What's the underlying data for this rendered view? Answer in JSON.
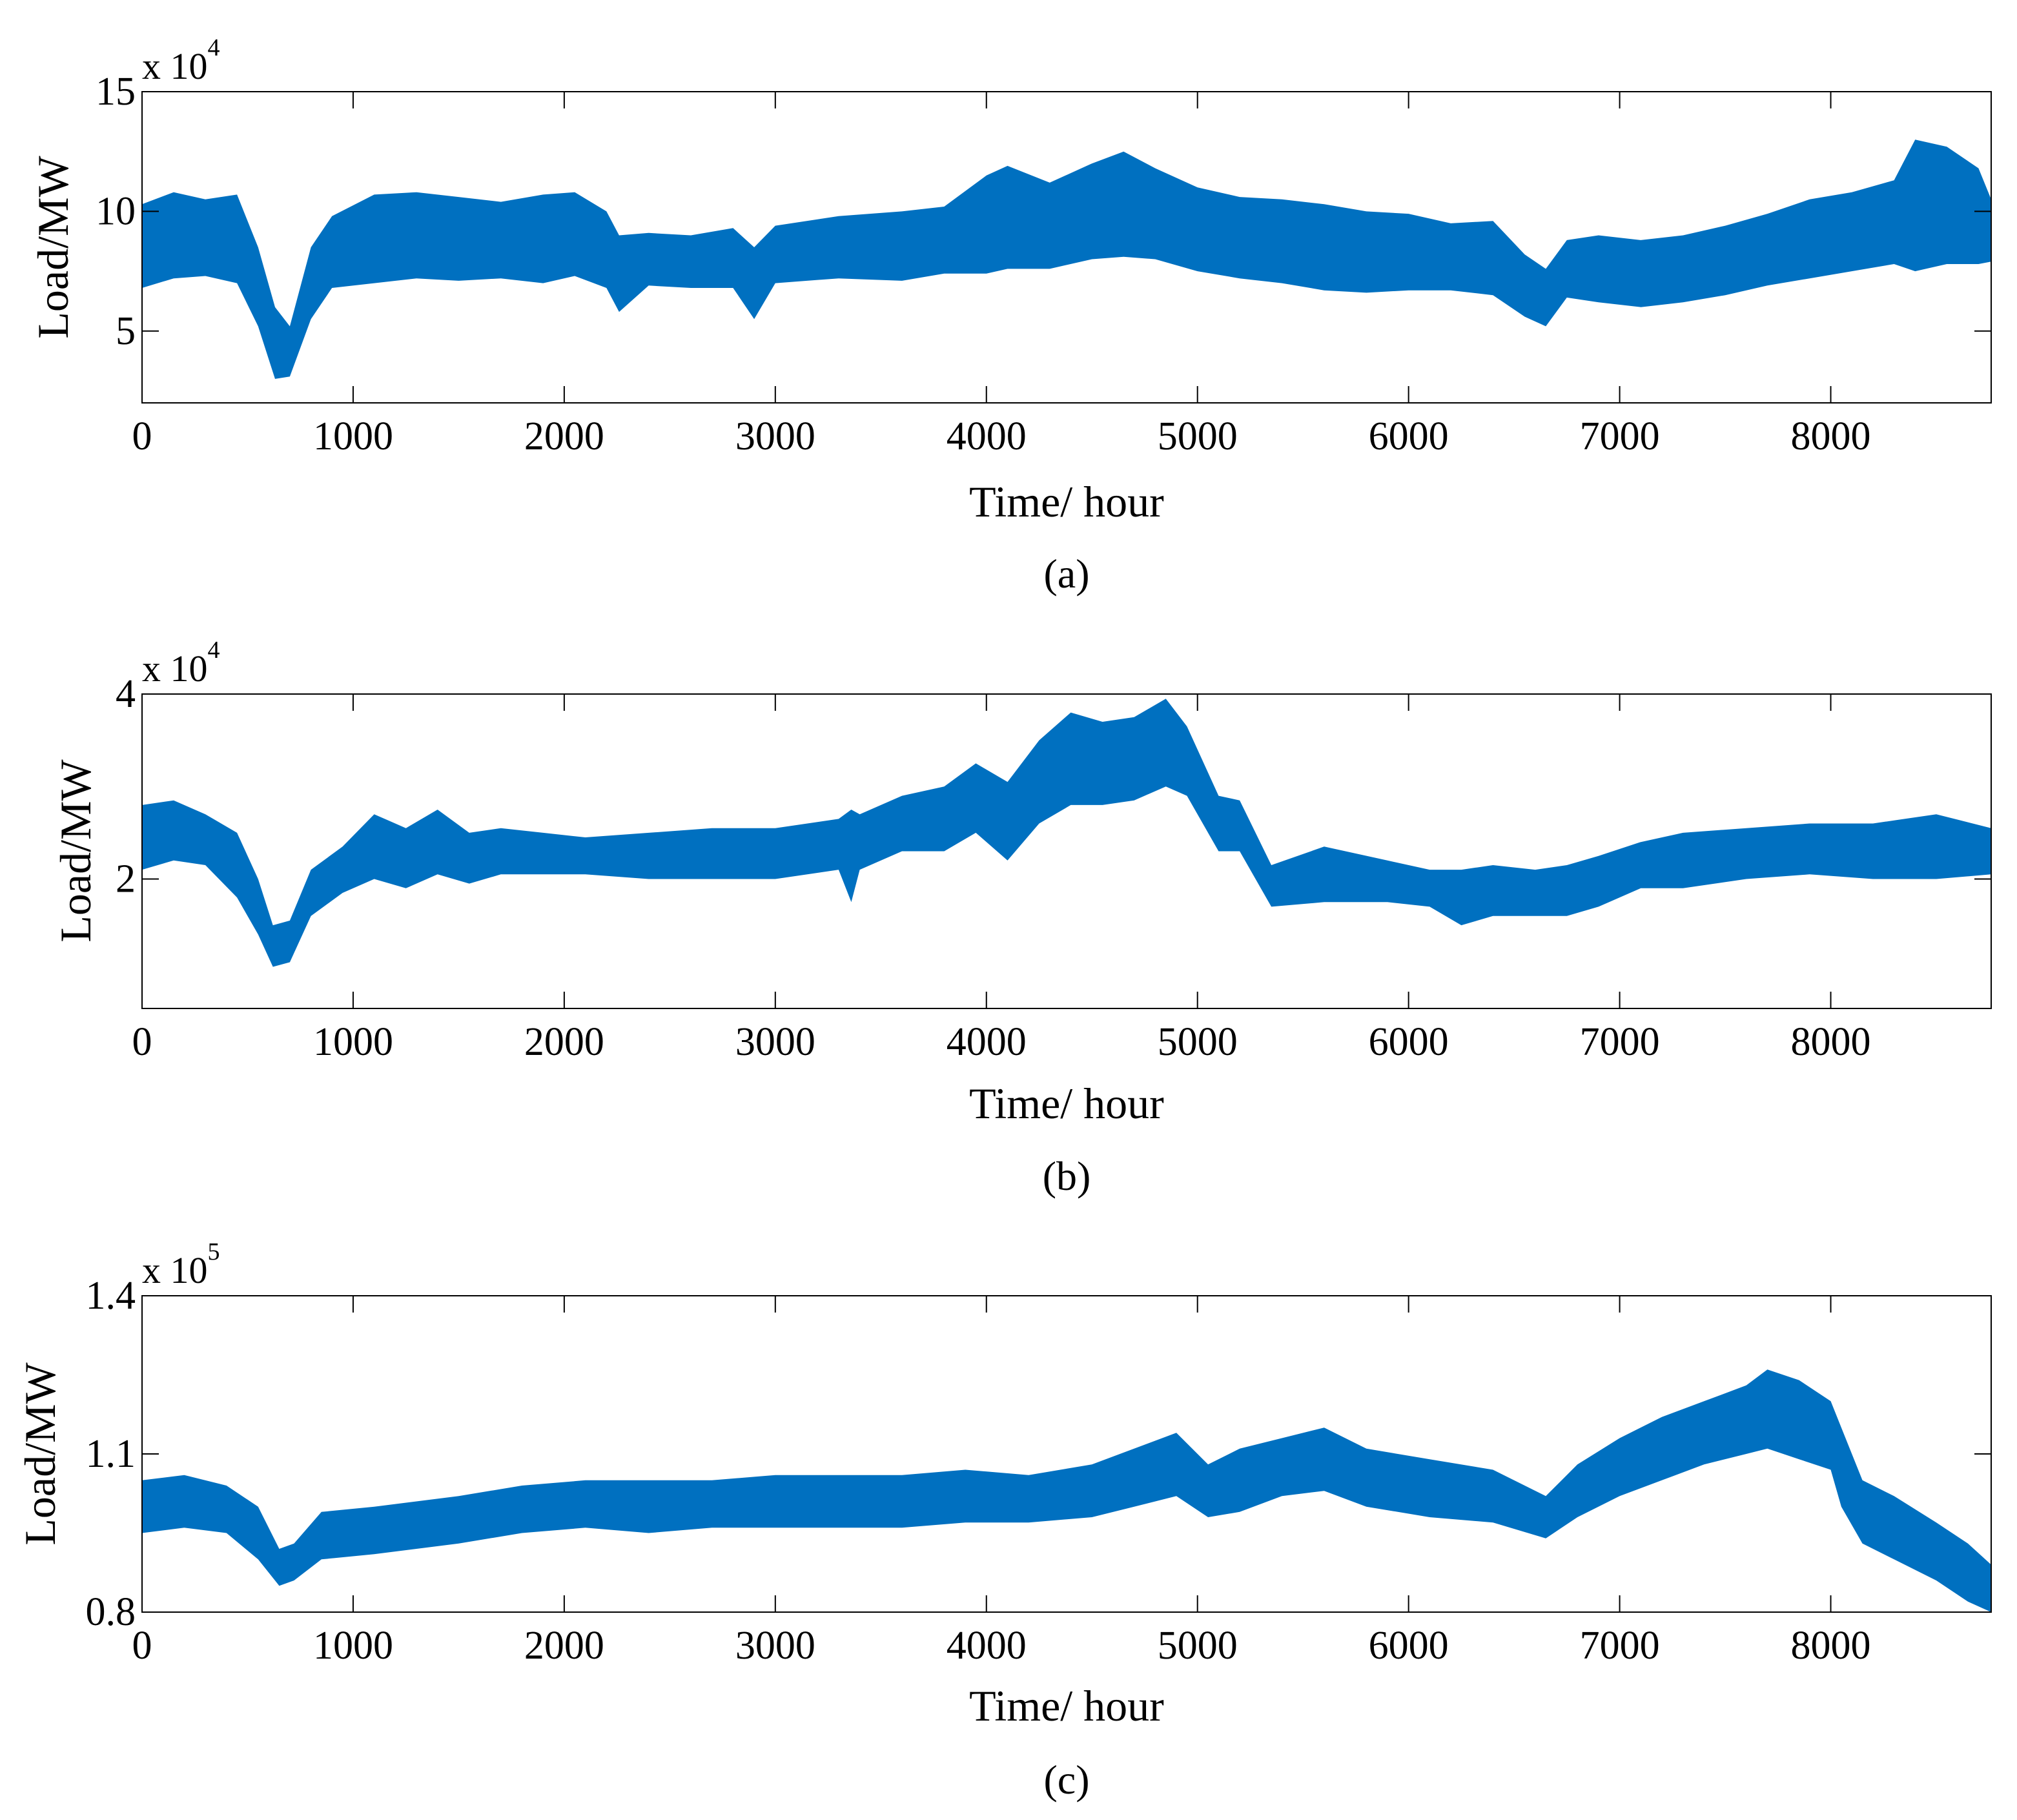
{
  "colors": {
    "series": "#0070c0",
    "axis": "#000000",
    "background": "#ffffff"
  },
  "chart_data": [
    {
      "id": "a",
      "type": "line",
      "caption": "(a)",
      "xlabel": "Time/ hour",
      "ylabel": "Load/MW",
      "multiplier_base": "x 10",
      "multiplier_exp": "4",
      "xlim": [
        0,
        8760
      ],
      "ylim": [
        2,
        15
      ],
      "xticks": [
        0,
        1000,
        2000,
        3000,
        4000,
        5000,
        6000,
        7000,
        8000
      ],
      "xtick_labels": [
        "0",
        "1000",
        "2000",
        "3000",
        "4000",
        "5000",
        "6000",
        "7000",
        "8000"
      ],
      "yticks": [
        5,
        10,
        15
      ],
      "ytick_labels": [
        "5",
        "10",
        "15"
      ],
      "series": [
        {
          "name": "Load",
          "x": [
            0,
            150,
            300,
            450,
            550,
            630,
            700,
            800,
            900,
            1100,
            1300,
            1500,
            1700,
            1900,
            2050,
            2200,
            2260,
            2400,
            2600,
            2800,
            2900,
            3000,
            3300,
            3600,
            3800,
            4000,
            4100,
            4300,
            4500,
            4650,
            4800,
            5000,
            5200,
            5400,
            5600,
            5800,
            6000,
            6200,
            6400,
            6550,
            6650,
            6750,
            6900,
            7100,
            7300,
            7500,
            7700,
            7900,
            8100,
            8300,
            8400,
            8550,
            8700,
            8760
          ],
          "low": [
            6.8,
            7.2,
            7.3,
            7.0,
            5.2,
            3.0,
            3.1,
            5.5,
            6.8,
            7.0,
            7.2,
            7.1,
            7.2,
            7.0,
            7.3,
            6.8,
            5.8,
            6.9,
            6.8,
            6.8,
            5.5,
            7.0,
            7.2,
            7.1,
            7.4,
            7.4,
            7.6,
            7.6,
            8.0,
            8.1,
            8.0,
            7.5,
            7.2,
            7.0,
            6.7,
            6.6,
            6.7,
            6.7,
            6.5,
            5.6,
            5.2,
            6.4,
            6.2,
            6.0,
            6.2,
            6.5,
            6.9,
            7.2,
            7.5,
            7.8,
            7.5,
            7.8,
            7.8,
            7.9
          ],
          "high": [
            10.3,
            10.8,
            10.5,
            10.7,
            8.5,
            6.0,
            5.2,
            8.5,
            9.8,
            10.7,
            10.8,
            10.6,
            10.4,
            10.7,
            10.8,
            10.0,
            9.0,
            9.1,
            9.0,
            9.3,
            8.5,
            9.4,
            9.8,
            10.0,
            10.2,
            11.5,
            11.9,
            11.2,
            12.0,
            12.5,
            11.8,
            11.0,
            10.6,
            10.5,
            10.3,
            10.0,
            9.9,
            9.5,
            9.6,
            8.2,
            7.6,
            8.8,
            9.0,
            8.8,
            9.0,
            9.4,
            9.9,
            10.5,
            10.8,
            11.3,
            13.0,
            12.7,
            11.8,
            10.5
          ]
        }
      ]
    },
    {
      "id": "b",
      "type": "line",
      "caption": "(b)",
      "xlabel": "Time/ hour",
      "ylabel": "Load/MW",
      "multiplier_base": "x 10",
      "multiplier_exp": "4",
      "xlim": [
        0,
        8760
      ],
      "ylim": [
        0.6,
        4
      ],
      "xticks": [
        0,
        1000,
        2000,
        3000,
        4000,
        5000,
        6000,
        7000,
        8000
      ],
      "xtick_labels": [
        "0",
        "1000",
        "2000",
        "3000",
        "4000",
        "5000",
        "6000",
        "7000",
        "8000"
      ],
      "yticks": [
        2,
        4
      ],
      "ytick_labels": [
        "2",
        "4"
      ],
      "series": [
        {
          "name": "Load",
          "x": [
            0,
            150,
            300,
            450,
            550,
            620,
            700,
            800,
            950,
            1100,
            1250,
            1400,
            1550,
            1700,
            1900,
            2100,
            2400,
            2700,
            3000,
            3300,
            3360,
            3400,
            3600,
            3800,
            3950,
            4100,
            4250,
            4400,
            4550,
            4700,
            4850,
            4950,
            5100,
            5200,
            5350,
            5600,
            5900,
            6100,
            6250,
            6400,
            6600,
            6750,
            6900,
            7100,
            7300,
            7600,
            7900,
            8200,
            8500,
            8760
          ],
          "low": [
            2.1,
            2.2,
            2.15,
            1.8,
            1.4,
            1.05,
            1.1,
            1.6,
            1.85,
            2.0,
            1.9,
            2.05,
            1.95,
            2.05,
            2.05,
            2.05,
            2.0,
            2.0,
            2.0,
            2.1,
            1.75,
            2.1,
            2.3,
            2.3,
            2.5,
            2.2,
            2.6,
            2.8,
            2.8,
            2.85,
            3.0,
            2.9,
            2.3,
            2.3,
            1.7,
            1.75,
            1.75,
            1.7,
            1.5,
            1.6,
            1.6,
            1.6,
            1.7,
            1.9,
            1.9,
            2.0,
            2.05,
            2.0,
            2.0,
            2.05
          ],
          "high": [
            2.8,
            2.85,
            2.7,
            2.5,
            2.0,
            1.5,
            1.55,
            2.1,
            2.35,
            2.7,
            2.55,
            2.75,
            2.5,
            2.55,
            2.5,
            2.45,
            2.5,
            2.55,
            2.55,
            2.65,
            2.75,
            2.7,
            2.9,
            3.0,
            3.25,
            3.05,
            3.5,
            3.8,
            3.7,
            3.75,
            3.95,
            3.65,
            2.9,
            2.85,
            2.15,
            2.35,
            2.2,
            2.1,
            2.1,
            2.15,
            2.1,
            2.15,
            2.25,
            2.4,
            2.5,
            2.55,
            2.6,
            2.6,
            2.7,
            2.55
          ]
        }
      ]
    },
    {
      "id": "c",
      "type": "line",
      "caption": "(c)",
      "xlabel": "Time/ hour",
      "ylabel": "Load/MW",
      "multiplier_base": "x 10",
      "multiplier_exp": "5",
      "xlim": [
        0,
        8760
      ],
      "ylim": [
        0.8,
        1.4
      ],
      "xticks": [
        0,
        1000,
        2000,
        3000,
        4000,
        5000,
        6000,
        7000,
        8000
      ],
      "xtick_labels": [
        "0",
        "1000",
        "2000",
        "3000",
        "4000",
        "5000",
        "6000",
        "7000",
        "8000"
      ],
      "yticks": [
        0.8,
        1.1,
        1.4
      ],
      "ytick_labels": [
        "0.8",
        "1.1",
        "1.4"
      ],
      "series": [
        {
          "name": "Load",
          "x": [
            0,
            200,
            400,
            550,
            650,
            720,
            850,
            1100,
            1300,
            1500,
            1800,
            2100,
            2400,
            2700,
            3000,
            3300,
            3600,
            3900,
            4200,
            4500,
            4700,
            4900,
            5050,
            5200,
            5400,
            5600,
            5800,
            6100,
            6400,
            6650,
            6800,
            7000,
            7200,
            7400,
            7600,
            7700,
            7850,
            8000,
            8050,
            8150,
            8300,
            8500,
            8650,
            8760
          ],
          "low": [
            0.95,
            0.96,
            0.95,
            0.9,
            0.85,
            0.86,
            0.9,
            0.91,
            0.92,
            0.93,
            0.95,
            0.96,
            0.95,
            0.96,
            0.96,
            0.96,
            0.96,
            0.97,
            0.97,
            0.98,
            1.0,
            1.02,
            0.98,
            0.99,
            1.02,
            1.03,
            1.0,
            0.98,
            0.97,
            0.94,
            0.98,
            1.02,
            1.05,
            1.08,
            1.1,
            1.11,
            1.09,
            1.07,
            1.0,
            0.93,
            0.9,
            0.86,
            0.82,
            0.8
          ],
          "high": [
            1.05,
            1.06,
            1.04,
            1.0,
            0.92,
            0.93,
            0.99,
            1.0,
            1.01,
            1.02,
            1.04,
            1.05,
            1.05,
            1.05,
            1.06,
            1.06,
            1.06,
            1.07,
            1.06,
            1.08,
            1.11,
            1.14,
            1.08,
            1.11,
            1.13,
            1.15,
            1.11,
            1.09,
            1.07,
            1.02,
            1.08,
            1.13,
            1.17,
            1.2,
            1.23,
            1.26,
            1.24,
            1.2,
            1.15,
            1.05,
            1.02,
            0.97,
            0.93,
            0.89
          ]
        }
      ]
    }
  ]
}
